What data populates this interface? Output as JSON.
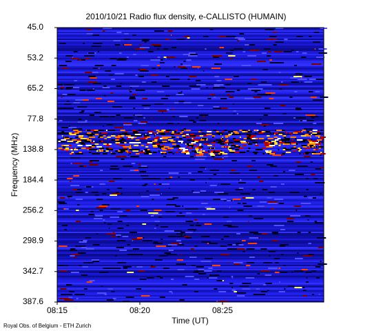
{
  "chart_data": {
    "type": "spectrogram",
    "title": "2010/10/21  Radio flux density, e-CALLISTO (HUMAIN)",
    "x_label": "Time (UT)",
    "y_label": "Frequency (MHz)",
    "xticks": [
      "08:15",
      "08:20",
      "08:25"
    ],
    "yticks": [
      "45.0",
      "53.2",
      "65.2",
      "77.8",
      "138.8",
      "184.4",
      "256.2",
      "298.9",
      "342.7",
      "387.6"
    ],
    "footer": "Royal Obs. of Belgium - ETH Zurich"
  }
}
